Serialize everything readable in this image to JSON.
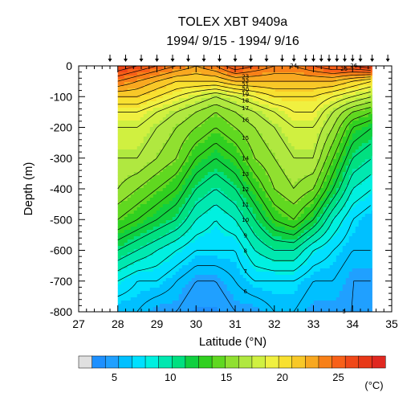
{
  "figure": {
    "title": "TOLEX XBT 9409a",
    "subtitle": "1994/ 9/15 - 1994/ 9/16"
  },
  "colorbar": {
    "labels": [
      "5",
      "10",
      "15",
      "20",
      "25"
    ],
    "unit": "(°C)",
    "colors": [
      "#e0e0e0",
      "#1e90ff",
      "#20a0ff",
      "#00c0ff",
      "#00e0ff",
      "#00f0e0",
      "#00e8b0",
      "#00e080",
      "#10d040",
      "#30d020",
      "#60d820",
      "#90e030",
      "#b0e840",
      "#d0f040",
      "#f0f040",
      "#f8e030",
      "#f8c828",
      "#f8a820",
      "#f88018",
      "#f86018",
      "#f04818",
      "#e83818",
      "#e02820"
    ]
  },
  "chart_data": {
    "type": "heatmap",
    "title": "TOLEX XBT 9409a",
    "subtitle": "1994/ 9/15 - 1994/ 9/16",
    "xlabel": "Latitude (°N)",
    "ylabel": "Depth (m)",
    "xlim": [
      27,
      35
    ],
    "ylim": [
      -800,
      0
    ],
    "xticks": [
      27,
      28,
      29,
      30,
      31,
      32,
      33,
      34,
      35
    ],
    "yticks": [
      0,
      -100,
      -200,
      -300,
      -400,
      -500,
      -600,
      -700,
      -800
    ],
    "xtick_labels": [
      "27",
      "28",
      "29",
      "30",
      "31",
      "32",
      "33",
      "34",
      "35"
    ],
    "ytick_labels": [
      "0",
      "-100",
      "-200",
      "-300",
      "-400",
      "-500",
      "-600",
      "-700",
      "-800"
    ],
    "value_label": "Temperature (°C)",
    "colorbar_range": [
      3,
      28
    ],
    "colorbar_ticks": [
      5,
      10,
      15,
      20,
      25
    ],
    "data_extent_lat": [
      28.0,
      34.5
    ],
    "station_latitudes": [
      27.8,
      28.2,
      28.6,
      29.0,
      29.4,
      29.8,
      30.2,
      30.6,
      31.0,
      31.4,
      31.8,
      32.2,
      32.5,
      32.8,
      33.0,
      33.2,
      33.4,
      33.6,
      33.8,
      34.0,
      34.2,
      34.5,
      34.9
    ],
    "profile_latitudes": [
      28.0,
      28.5,
      29.0,
      29.5,
      30.0,
      30.5,
      31.0,
      31.5,
      32.0,
      32.5,
      33.0,
      33.5,
      34.0,
      34.5
    ],
    "profile_depths": [
      0,
      50,
      100,
      150,
      200,
      300,
      400,
      500,
      600,
      700,
      800
    ],
    "temperature_grid": [
      [
        27,
        26,
        25,
        24,
        23,
        24,
        26,
        25,
        24,
        24,
        25,
        26,
        26,
        27
      ],
      [
        24,
        23,
        22,
        21,
        21,
        21,
        22,
        22,
        22,
        22,
        22,
        22,
        21,
        20
      ],
      [
        21,
        21,
        20,
        19,
        18,
        17,
        18,
        19,
        20,
        20,
        20,
        19,
        18,
        17
      ],
      [
        19,
        19,
        18,
        17,
        16,
        15,
        16,
        17,
        18,
        19,
        19,
        17,
        15,
        14
      ],
      [
        18,
        18,
        17,
        16,
        15,
        14,
        15,
        16,
        17,
        18,
        18,
        16,
        13,
        12
      ],
      [
        17,
        17,
        16,
        15,
        13,
        12,
        13,
        15,
        16,
        17,
        17,
        14,
        11,
        10
      ],
      [
        16,
        15,
        14,
        13,
        11,
        10,
        11,
        13,
        15,
        16,
        15,
        12,
        9,
        8
      ],
      [
        14,
        13,
        12,
        11,
        9,
        8,
        9,
        11,
        13,
        14,
        12,
        9,
        7,
        6
      ],
      [
        11,
        10,
        9,
        8,
        7,
        7,
        7,
        9,
        10,
        10,
        8,
        7,
        6,
        6
      ],
      [
        8,
        7,
        7,
        6,
        5,
        5,
        6,
        7,
        7,
        7,
        6,
        6,
        5,
        5
      ],
      [
        6,
        6,
        5,
        5,
        4,
        4,
        5,
        5,
        6,
        6,
        5,
        5,
        5,
        5
      ]
    ],
    "grid": false,
    "legend": "bottom"
  }
}
